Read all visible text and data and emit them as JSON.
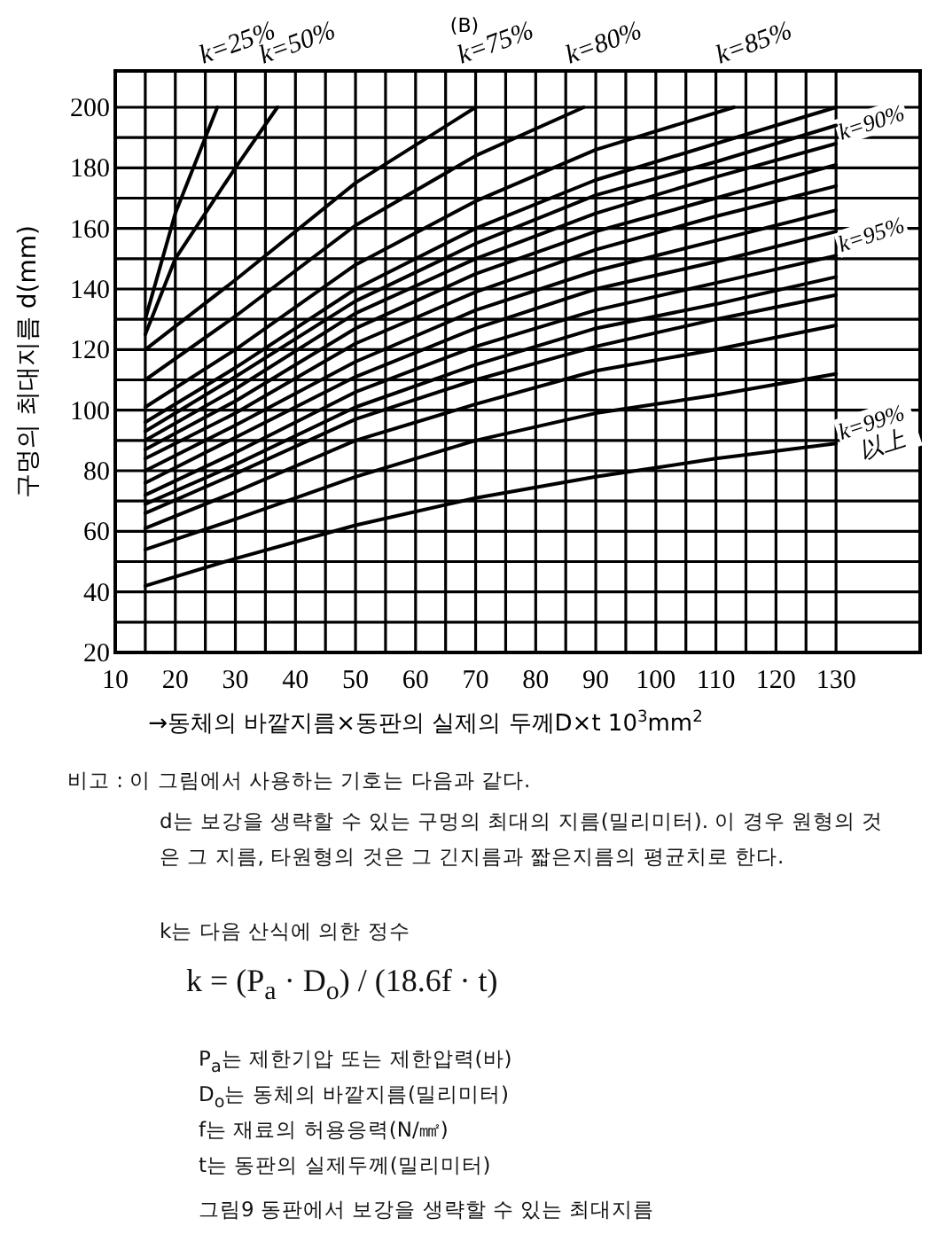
{
  "chart_data": {
    "type": "line",
    "title": "(B)",
    "xlabel": "→동체의 바깥지름×동판의 실제의 두께D×t 10$^{3}$mm$^{2}$",
    "ylabel": "구멍의 최대지름 d(mm)",
    "xlim": [
      10,
      144
    ],
    "ylim": [
      20,
      212
    ],
    "xticks": [
      10,
      {
        "value": 15,
        "label": null
      },
      20,
      {
        "value": 25,
        "label": null
      },
      30,
      {
        "value": 35,
        "label": null
      },
      40,
      {
        "value": 45,
        "label": null
      },
      50,
      {
        "value": 55,
        "label": null
      },
      60,
      {
        "value": 65,
        "label": null
      },
      70,
      {
        "value": 75,
        "label": null
      },
      80,
      {
        "value": 85,
        "label": null
      },
      90,
      {
        "value": 95,
        "label": null
      },
      100,
      {
        "value": 105,
        "label": null
      },
      110,
      {
        "value": 115,
        "label": null
      },
      120,
      {
        "value": 125,
        "label": null
      },
      130
    ],
    "yticks": [
      20,
      {
        "value": 30,
        "label": null
      },
      40,
      {
        "value": 50,
        "label": null
      },
      60,
      {
        "value": 70,
        "label": null
      },
      80,
      {
        "value": 90,
        "label": null
      },
      100,
      {
        "value": 110,
        "label": null
      },
      120,
      {
        "value": 130,
        "label": null
      },
      140,
      {
        "value": 150,
        "label": null
      },
      160,
      {
        "value": 170,
        "label": null
      },
      180,
      {
        "value": 190,
        "label": null
      },
      200
    ],
    "grid": true,
    "legend": false,
    "marker": "none",
    "line_style": "solid",
    "series": [
      {
        "name": "k=99% 以上",
        "color": "#000000",
        "x": [
          15,
          30,
          50,
          70,
          90,
          110,
          130
        ],
        "values": [
          42,
          51,
          62,
          71,
          78,
          84,
          89
        ]
      },
      {
        "color": "#000000",
        "x": [
          15,
          30,
          50,
          70,
          90,
          110,
          130
        ],
        "values": [
          54,
          64,
          78,
          90,
          99,
          105,
          112
        ]
      },
      {
        "color": "#000000",
        "x": [
          15,
          30,
          50,
          70,
          90,
          110,
          130
        ],
        "values": [
          61,
          73,
          90,
          102,
          113,
          120,
          128
        ]
      },
      {
        "color": "#000000",
        "x": [
          15,
          30,
          50,
          70,
          90,
          110,
          130
        ],
        "values": [
          66,
          79,
          97,
          110,
          121,
          130,
          138
        ]
      },
      {
        "color": "#000000",
        "x": [
          15,
          30,
          50,
          70,
          90,
          110,
          130
        ],
        "values": [
          69,
          82,
          101,
          115,
          127,
          135,
          144
        ]
      },
      {
        "name": "k=95%",
        "color": "#000000",
        "x": [
          15,
          30,
          50,
          70,
          90,
          110,
          130
        ],
        "values": [
          72,
          86,
          106,
          121,
          133,
          142,
          151
        ]
      },
      {
        "color": "#000000",
        "x": [
          15,
          30,
          50,
          70,
          90,
          110,
          130
        ],
        "values": [
          76,
          91,
          111,
          127,
          140,
          149,
          159
        ]
      },
      {
        "color": "#000000",
        "x": [
          15,
          30,
          50,
          70,
          90,
          110,
          130
        ],
        "values": [
          80,
          95,
          116,
          133,
          146,
          156,
          166
        ]
      },
      {
        "color": "#000000",
        "x": [
          15,
          30,
          50,
          70,
          90,
          110,
          130
        ],
        "values": [
          84,
          99,
          122,
          139,
          153,
          164,
          174
        ]
      },
      {
        "color": "#000000",
        "x": [
          15,
          30,
          50,
          70,
          90,
          110,
          130
        ],
        "values": [
          87,
          103,
          127,
          145,
          159,
          170,
          181
        ]
      },
      {
        "name": "k=90%",
        "color": "#000000",
        "x": [
          15,
          30,
          50,
          70,
          90,
          110,
          130
        ],
        "values": [
          90,
          107,
          132,
          150,
          165,
          177,
          188
        ]
      },
      {
        "color": "#000000",
        "x": [
          15,
          30,
          50,
          70,
          90,
          110,
          130
        ],
        "values": [
          93,
          111,
          136,
          155,
          171,
          182,
          194
        ]
      },
      {
        "color": "#000000",
        "x": [
          15,
          30,
          50,
          70,
          90,
          110,
          130
        ],
        "values": [
          96,
          114,
          140,
          160,
          176,
          188,
          200
        ]
      },
      {
        "name": "k=85%",
        "color": "#000000",
        "x": [
          15,
          30,
          50,
          70,
          90,
          113
        ],
        "values": [
          101,
          120,
          148,
          169,
          186,
          200
        ]
      },
      {
        "name": "k=80%",
        "color": "#000000",
        "x": [
          15,
          30,
          50,
          70,
          88
        ],
        "values": [
          110,
          131,
          161,
          184,
          200
        ]
      },
      {
        "name": "k=75%",
        "color": "#000000",
        "x": [
          15,
          30,
          50,
          70
        ],
        "values": [
          120,
          143,
          175,
          200
        ]
      },
      {
        "name": "k=50%",
        "color": "#000000",
        "x": [
          15,
          20,
          30,
          37
        ],
        "values": [
          125,
          150,
          180,
          200
        ]
      },
      {
        "name": "k=25%",
        "color": "#000000",
        "x": [
          15,
          20,
          27
        ],
        "values": [
          130,
          165,
          200
        ]
      }
    ],
    "annotations": [
      "비고 : 이 그림에서 사용하는 기호는 다음과 같다.",
      "d는 보강을 생략할 수 있는 구멍의 최대의 지름(밀리미터). 이 경우 원형의 것은 그 지름, 타원형의 것은 그 긴지름과 짧은지름의 평균치로 한다.",
      "k는 다음 산식에 의한 정수",
      "k = (P$_{a}$ · D$_{o}$) / (18.6f · t)",
      "P$_{a}$는 제한기압 또는 제한압력(바)",
      "D$_{o}$는 동체의 바깥지름(밀리미터)",
      "f는 재료의 허용응력(N/㎟)",
      "t는 동판의 실제두께(밀리미터)",
      "그림9  동판에서 보강을 생략할 수 있는 최대지름"
    ]
  }
}
